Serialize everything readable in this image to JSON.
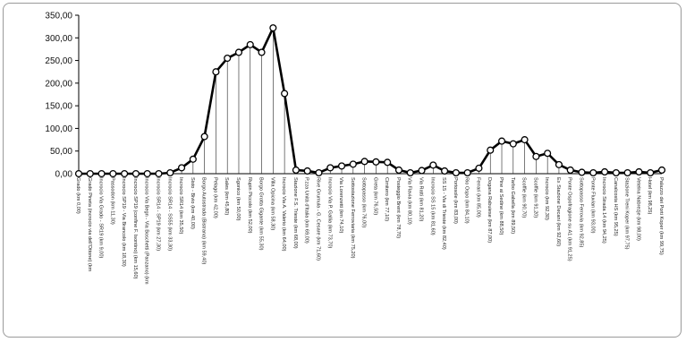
{
  "chart_data": {
    "type": "line",
    "title": "",
    "xlabel": "",
    "ylabel": "",
    "ylim": [
      0,
      350
    ],
    "yticks": [
      "0,00",
      "50,00",
      "100,00",
      "150,00",
      "200,00",
      "250,00",
      "300,00",
      "350,00"
    ],
    "grid": false,
    "legend": "none",
    "categories": [
      "Grado (km 0,00)",
      "Grado Pineta (incrocio via dell'Ottone) (km",
      "Incrocio Via Grado - SR19 (km 9,00)",
      "Passodon (km 11,30)",
      "Incrocio SP19 - Via Brancolo (km 18,30)",
      "Incrocio SP19 (confine F. Isontino) (km 15,60)",
      "Incrocio Via Begn - Via Boschetti (Panzano) (km",
      "Incrocio SR14 - SP19 (km 27,30)",
      "Incrocio SR14 - SS55 (km 33,30)",
      "Incrocio SR14 (km 35,50)",
      "Sisto - Bivio (km 40,00)",
      "Borgo Autostrada (Bistrana) (km 59,40)",
      "Pelago (km 42,00)",
      "Sales (km 45,80)",
      "Sgonico (km 50,00)",
      "Rupin Piccolo (km 52,00)",
      "Borgo Grotta Gigante (km 55,30)",
      "Villa Opicina (km 58,30)",
      "Incrocio Via A. Valerio (km 64,00)",
      "Stazione F.S. Trieste (km 68,00)",
      "P.zza Unità d'Italia (km 69,00)",
      "Rive Grumula - G. Cesare (km 71,60)",
      "Incrocio Via P. Gallia (km 73,70)",
      "Via Lorenzetti (km 74,10)",
      "Sottostazione Ferroviaria (km 75,20)",
      "Sottopasso (km 76,00)",
      "Greta (km 76,50)",
      "Cimitero (km 77,10)",
      "Posteggio Brent (km 78,70)",
      "Via Flavia (km 80,10)",
      "Via Ratti (km 81,20)",
      "Incrocio SS 15 (km 81,60)",
      "SS 15 - Via di Trieste (km 82,40)",
      "Portosole (km 83,00)",
      "Rio Ospo (km 84,10)",
      "Ferrari (km 85,00)",
      "Dogana Rabuiese (km 87,00)",
      "Pine ai Sedine (km 88,50)",
      "Tarbo Gabella (km 89,50)",
      "Scoffie (km 90,70)",
      "Scoffie (km 91,20)",
      "Incrocio (km 92,30)",
      "Ex Stazione Decani (km 92,60)",
      "Ponte Ospofragione su A1 (km 91,25)",
      "Sottopasso Ferrovia (km 92,85)",
      "Ponte Fluvian (km 93,00)",
      "Incrocio Strada 14 (km 94,25)",
      "Canalcosta HS (km 95,25)",
      "Stazione Treni Koper (km 97,75)",
      "Vetelna Nabrezje (km 98,00)",
      "Hotel (km 98,25)",
      "Palazzo dei Porti Koper (km 99,75)"
    ],
    "values": [
      0,
      0,
      0,
      0,
      0,
      0,
      0,
      0,
      2,
      13,
      32,
      82,
      225,
      255,
      268,
      285,
      268,
      322,
      177,
      8,
      6,
      2,
      13,
      17,
      21,
      27,
      26,
      25,
      8,
      2,
      7,
      19,
      6,
      2,
      2,
      12,
      52,
      72,
      66,
      75,
      38,
      45,
      20,
      8,
      3,
      2,
      4,
      2,
      2,
      4,
      2,
      8
    ]
  }
}
